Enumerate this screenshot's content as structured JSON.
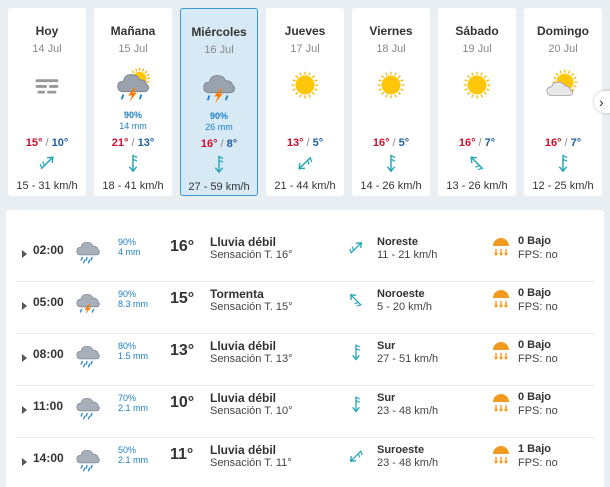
{
  "days": [
    {
      "name": "Hoy",
      "date": "14 Jul",
      "icon": "fog-icon",
      "prob": "",
      "mm": "",
      "max": "15°",
      "min": "10°",
      "wind_dir": "NE",
      "wind": "15 - 31 km/h",
      "active": false
    },
    {
      "name": "Mañana",
      "date": "15 Jul",
      "icon": "storm-sun-icon",
      "prob": "90%",
      "mm": "14 mm",
      "max": "21°",
      "min": "13°",
      "wind_dir": "S",
      "wind": "18 - 41 km/h",
      "active": false
    },
    {
      "name": "Miércoles",
      "date": "16 Jul",
      "icon": "storm-icon",
      "prob": "90%",
      "mm": "26 mm",
      "max": "16°",
      "min": "8°",
      "wind_dir": "S",
      "wind": "27 - 59 km/h",
      "active": true
    },
    {
      "name": "Jueves",
      "date": "17 Jul",
      "icon": "sun-icon",
      "prob": "",
      "mm": "",
      "max": "13°",
      "min": "5°",
      "wind_dir": "SW",
      "wind": "21 - 44 km/h",
      "active": false
    },
    {
      "name": "Viernes",
      "date": "18 Jul",
      "icon": "sun-icon",
      "prob": "",
      "mm": "",
      "max": "16°",
      "min": "5°",
      "wind_dir": "S",
      "wind": "14 - 26 km/h",
      "active": false
    },
    {
      "name": "Sábado",
      "date": "19 Jul",
      "icon": "sun-icon",
      "prob": "",
      "mm": "",
      "max": "16°",
      "min": "7°",
      "wind_dir": "NW",
      "wind": "13 - 26 km/h",
      "active": false
    },
    {
      "name": "Domingo",
      "date": "20 Jul",
      "icon": "sun-cloud-icon",
      "prob": "",
      "mm": "",
      "max": "16°",
      "min": "7°",
      "wind_dir": "S",
      "wind": "12 - 25 km/h",
      "active": false
    }
  ],
  "hours": [
    {
      "time": "02:00",
      "icon": "rain-cloud-icon",
      "prob": "90%",
      "mm": "4 mm",
      "temp": "16°",
      "desc": "Lluvia débil",
      "feel": "Sensación T. 16°",
      "wind_dir": "NE",
      "dir_label": "Noreste",
      "wind": "11 - 21 km/h",
      "uv": "0 Bajo",
      "fps": "FPS: no"
    },
    {
      "time": "05:00",
      "icon": "storm-cloud-icon",
      "prob": "90%",
      "mm": "8.3 mm",
      "temp": "15°",
      "desc": "Tormenta",
      "feel": "Sensación T. 15°",
      "wind_dir": "NW",
      "dir_label": "Noroeste",
      "wind": "5 - 20 km/h",
      "uv": "0 Bajo",
      "fps": "FPS: no"
    },
    {
      "time": "08:00",
      "icon": "rain-cloud-icon",
      "prob": "80%",
      "mm": "1.5 mm",
      "temp": "13°",
      "desc": "Lluvia débil",
      "feel": "Sensación T. 13°",
      "wind_dir": "S",
      "dir_label": "Sur",
      "wind": "27 - 51 km/h",
      "uv": "0 Bajo",
      "fps": "FPS: no"
    },
    {
      "time": "11:00",
      "icon": "rain-cloud-icon",
      "prob": "70%",
      "mm": "2.1 mm",
      "temp": "10°",
      "desc": "Lluvia débil",
      "feel": "Sensación T. 10°",
      "wind_dir": "S",
      "dir_label": "Sur",
      "wind": "23 - 48 km/h",
      "uv": "0 Bajo",
      "fps": "FPS: no"
    },
    {
      "time": "14:00",
      "icon": "rain-cloud-icon",
      "prob": "50%",
      "mm": "2.1 mm",
      "temp": "11°",
      "desc": "Lluvia débil",
      "feel": "Sensación T. 11°",
      "wind_dir": "SW",
      "dir_label": "Suroeste",
      "wind": "23 - 48 km/h",
      "uv": "1 Bajo",
      "fps": "FPS: no"
    }
  ],
  "colors": {
    "max_temp": "#c8102e",
    "min_temp": "#1e5fa0",
    "arrow": "#27a7b8",
    "precip": "#1e7fc4",
    "active_bg": "#d6e9f5",
    "active_border": "#3a9ad1"
  },
  "nav": {
    "next_label": "›"
  }
}
